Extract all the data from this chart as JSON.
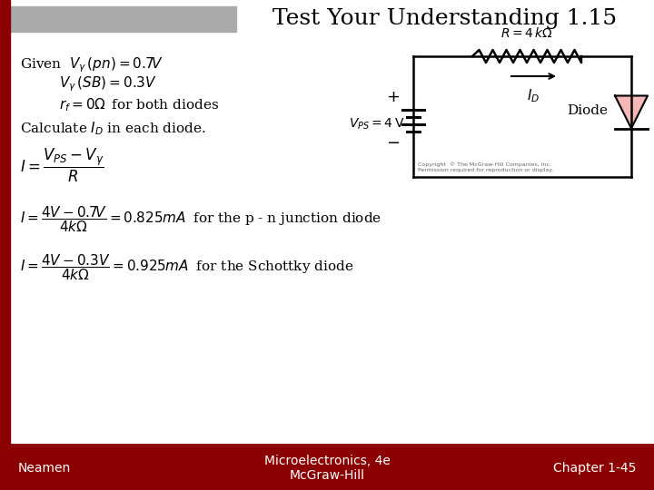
{
  "title": "Test Your Understanding 1.15",
  "title_color": "#000000",
  "title_fontsize": 18,
  "background_color": "#ffffff",
  "header_bar_color": "#aaaaaa",
  "left_bar_color": "#8b0000",
  "footer_bar_color": "#8b0000",
  "footer_left": "Neamen",
  "footer_center": "Microelectronics, 4e\nMcGraw-Hill",
  "footer_right": "Chapter 1-45",
  "footer_fontsize": 10,
  "given_line1": "Given  $V_{\\gamma}\\,(pn) = 0.7V$",
  "given_line2": "$V_{\\gamma}\\,(SB) = 0.3V$",
  "given_line3": "$r_f = 0\\Omega\\,$ for both diodes",
  "given_line4": "Calculate $I_D$ in each diode.",
  "eq1": "$I = \\dfrac{V_{PS} - V_{\\gamma}}{R}$",
  "eq2": "$I = \\dfrac{4V - 0.7V}{4k\\Omega} = 0.825mA\\;$ for the p - n junction diode",
  "eq3": "$I = \\dfrac{4V - 0.3V}{4k\\Omega} = 0.925mA\\;$ for the Schottky diode",
  "circuit_R_label": "$R = 4\\,k\\Omega$",
  "circuit_VPS_label": "$V_{PS} = 4\\,\\mathrm{V}$",
  "circuit_ID_label": "$I_D$",
  "circuit_diode_label": "Diode",
  "copyright": "Copyright  © The McGraw-Hill Companies, Inc.\nPermission required for reproduction or display."
}
